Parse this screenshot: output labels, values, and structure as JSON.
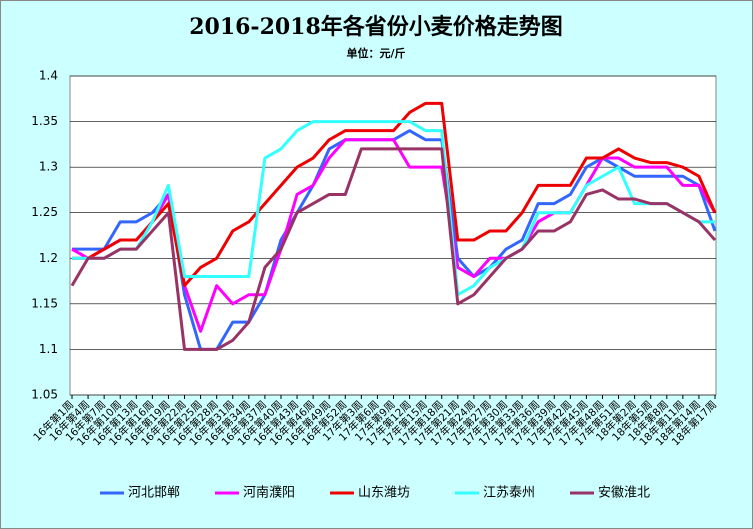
{
  "chart_data": {
    "type": "line",
    "title": "2016-2018年各省份小麦价格走势图",
    "subtitle": "单位：元/斤",
    "categories": [
      "16年第1周",
      "16年第4周",
      "16年第7周",
      "16年第10周",
      "16年第13周",
      "16年第16周",
      "16年第19周",
      "16年第22周",
      "16年第25周",
      "16年第28周",
      "16年第31周",
      "16年第34周",
      "16年第37周",
      "16年第40周",
      "16年第43周",
      "16年第46周",
      "16年第49周",
      "16年第52周",
      "17年第3周",
      "17年第6周",
      "17年第9周",
      "17年第12周",
      "17年第15周",
      "17年第18周",
      "17年第21周",
      "17年第24周",
      "17年第27周",
      "17年第30周",
      "17年第33周",
      "17年第36周",
      "17年第39周",
      "17年第42周",
      "17年第45周",
      "17年第48周",
      "17年第51周",
      "18年第2周",
      "18年第5周",
      "18年第8周",
      "18年第11周",
      "18年第14周",
      "18年第17周"
    ],
    "series": [
      {
        "name": "河北邯郸",
        "color": "#3366ff",
        "values": [
          1.21,
          1.21,
          1.21,
          1.24,
          1.24,
          1.25,
          1.27,
          1.16,
          1.1,
          1.1,
          1.13,
          1.13,
          1.16,
          1.22,
          1.25,
          1.28,
          1.32,
          1.33,
          1.33,
          1.33,
          1.33,
          1.34,
          1.33,
          1.33,
          1.2,
          1.18,
          1.19,
          1.21,
          1.22,
          1.26,
          1.26,
          1.27,
          1.3,
          1.31,
          1.3,
          1.29,
          1.29,
          1.29,
          1.29,
          1.28,
          1.23
        ]
      },
      {
        "name": "河南濮阳",
        "color": "#ff00ff",
        "values": [
          1.21,
          1.2,
          1.21,
          1.22,
          1.22,
          1.24,
          1.27,
          1.17,
          1.12,
          1.17,
          1.15,
          1.16,
          1.16,
          1.21,
          1.27,
          1.28,
          1.31,
          1.33,
          1.33,
          1.33,
          1.33,
          1.3,
          1.3,
          1.3,
          1.19,
          1.18,
          1.2,
          1.2,
          1.21,
          1.24,
          1.25,
          1.25,
          1.28,
          1.31,
          1.31,
          1.3,
          1.3,
          1.3,
          1.28,
          1.28,
          1.25
        ]
      },
      {
        "name": "山东潍坊",
        "color": "#ee0000",
        "values": [
          1.2,
          1.2,
          1.21,
          1.22,
          1.22,
          1.24,
          1.26,
          1.17,
          1.19,
          1.2,
          1.23,
          1.24,
          1.26,
          1.28,
          1.3,
          1.31,
          1.33,
          1.34,
          1.34,
          1.34,
          1.34,
          1.36,
          1.37,
          1.37,
          1.22,
          1.22,
          1.23,
          1.23,
          1.25,
          1.28,
          1.28,
          1.28,
          1.31,
          1.31,
          1.32,
          1.31,
          1.305,
          1.305,
          1.3,
          1.29,
          1.25
        ]
      },
      {
        "name": "江苏泰州",
        "color": "#33ffff",
        "values": [
          1.2,
          1.2,
          1.2,
          1.21,
          1.21,
          1.24,
          1.28,
          1.18,
          1.18,
          1.18,
          1.18,
          1.18,
          1.31,
          1.32,
          1.34,
          1.35,
          1.35,
          1.35,
          1.35,
          1.35,
          1.35,
          1.35,
          1.34,
          1.34,
          1.16,
          1.17,
          1.19,
          1.2,
          1.21,
          1.25,
          1.25,
          1.25,
          1.28,
          1.29,
          1.3,
          1.26,
          1.26,
          1.26,
          1.25,
          1.24,
          1.24
        ]
      },
      {
        "name": "安徽淮北",
        "color": "#993366",
        "values": [
          1.17,
          1.2,
          1.2,
          1.21,
          1.21,
          1.23,
          1.25,
          1.1,
          1.1,
          1.1,
          1.11,
          1.13,
          1.19,
          1.21,
          1.25,
          1.26,
          1.27,
          1.27,
          1.32,
          1.32,
          1.32,
          1.32,
          1.32,
          1.32,
          1.15,
          1.16,
          1.18,
          1.2,
          1.21,
          1.23,
          1.23,
          1.24,
          1.27,
          1.275,
          1.265,
          1.265,
          1.26,
          1.26,
          1.25,
          1.24,
          1.22
        ]
      }
    ],
    "ylim": [
      1.05,
      1.4
    ],
    "yticks": [
      1.05,
      1.1,
      1.15,
      1.2,
      1.25,
      1.3,
      1.35,
      1.4
    ],
    "grid": true
  }
}
